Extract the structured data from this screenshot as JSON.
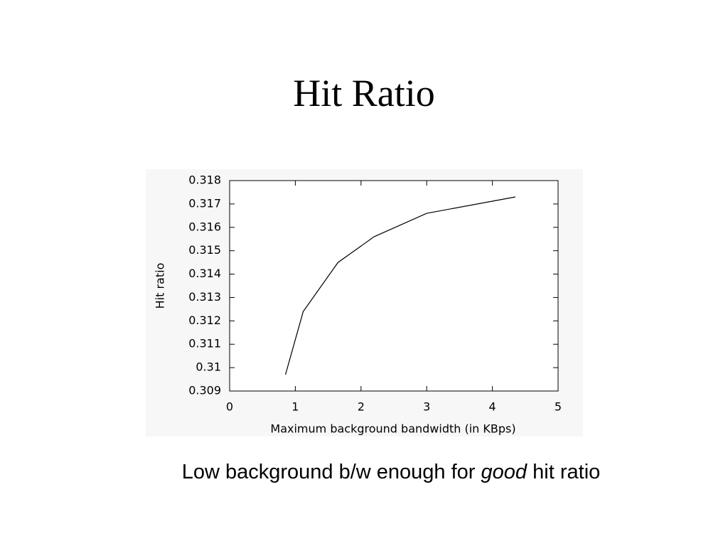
{
  "title": "Hit Ratio",
  "chart_data": {
    "type": "line",
    "x_label": "Maximum background bandwidth (in KBps)",
    "y_label": "Hit ratio",
    "x": [
      0.85,
      1.12,
      1.65,
      2.2,
      3,
      4.35
    ],
    "series": [
      {
        "color": "#000000",
        "values": [
          0.3097,
          0.3124,
          0.3145,
          0.3156,
          0.3166,
          0.3173
        ]
      }
    ],
    "xlim": [
      0,
      5
    ],
    "xticks": [
      0,
      1,
      2,
      3,
      4,
      5
    ],
    "ylim": [
      0.309,
      0.318
    ],
    "yticks": [
      0.309,
      0.31,
      0.311,
      0.312,
      0.313,
      0.314,
      0.315,
      0.316,
      0.317,
      0.318
    ],
    "grid": false
  },
  "caption": [
    "Low background b/w enough for",
    "good",
    "hit ratio"
  ]
}
